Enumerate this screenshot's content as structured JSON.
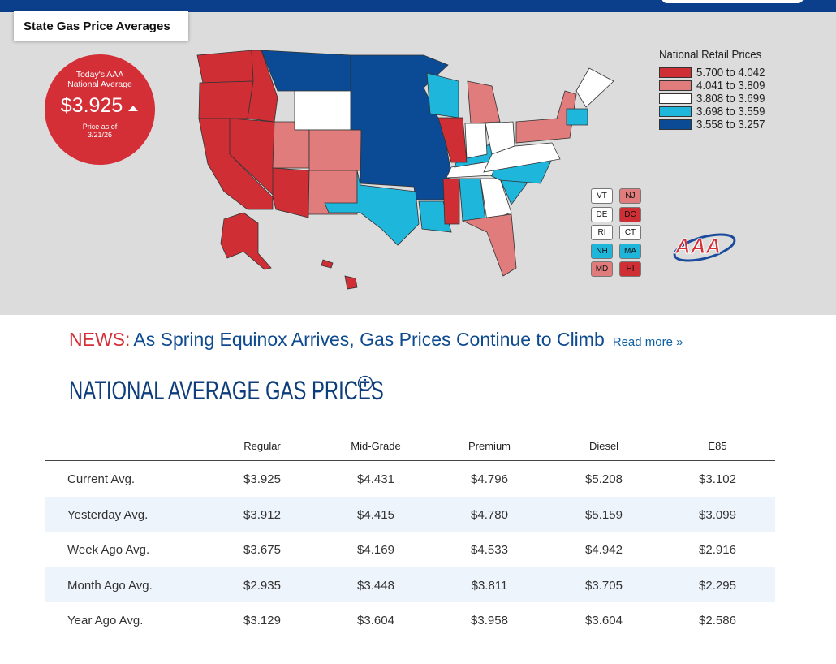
{
  "header": {
    "tab_title": "State Gas Price Averages"
  },
  "badge": {
    "line1": "Today's AAA",
    "line2": "National Average",
    "price": "$3.925",
    "as_of_label": "Price as of",
    "date": "3/21/26"
  },
  "legend": {
    "title": "National Retail Prices",
    "items": [
      {
        "label": "5.700 to 4.042",
        "color": "#cf2e35"
      },
      {
        "label": "4.041 to 3.809",
        "color": "#e07c7c"
      },
      {
        "label": "3.808 to 3.699",
        "color": "#ffffff"
      },
      {
        "label": "3.698 to 3.559",
        "color": "#1fb6dc"
      },
      {
        "label": "3.558 to 3.257",
        "color": "#0b4a94"
      }
    ]
  },
  "small_states": [
    {
      "label": "VT",
      "color": "#ffffff"
    },
    {
      "label": "NJ",
      "color": "#e07c7c"
    },
    {
      "label": "DE",
      "color": "#ffffff"
    },
    {
      "label": "DC",
      "color": "#cf2e35"
    },
    {
      "label": "RI",
      "color": "#ffffff"
    },
    {
      "label": "CT",
      "color": "#ffffff"
    },
    {
      "label": "NH",
      "color": "#1fb6dc"
    },
    {
      "label": "MA",
      "color": "#1fb6dc"
    },
    {
      "label": "MD",
      "color": "#e07c7c"
    },
    {
      "label": "HI",
      "color": "#cf2e35"
    }
  ],
  "logo": "AAA",
  "news": {
    "label": "NEWS:",
    "headline": "As Spring Equinox Arrives, Gas Prices Continue to Climb",
    "link": "Read more »"
  },
  "section_title": "NATIONAL AVERAGE GAS PRICES",
  "table": {
    "columns": [
      "Regular",
      "Mid-Grade",
      "Premium",
      "Diesel",
      "E85"
    ],
    "rows": [
      [
        "Current Avg.",
        "$3.925",
        "$4.431",
        "$4.796",
        "$5.208",
        "$3.102"
      ],
      [
        "Yesterday Avg.",
        "$3.912",
        "$4.415",
        "$4.780",
        "$5.159",
        "$3.099"
      ],
      [
        "Week Ago Avg.",
        "$3.675",
        "$4.169",
        "$4.533",
        "$4.942",
        "$2.916"
      ],
      [
        "Month Ago Avg.",
        "$2.935",
        "$3.448",
        "$3.811",
        "$3.705",
        "$2.295"
      ],
      [
        "Year Ago Avg.",
        "$3.129",
        "$3.604",
        "$3.958",
        "$3.604",
        "$2.586"
      ]
    ]
  }
}
